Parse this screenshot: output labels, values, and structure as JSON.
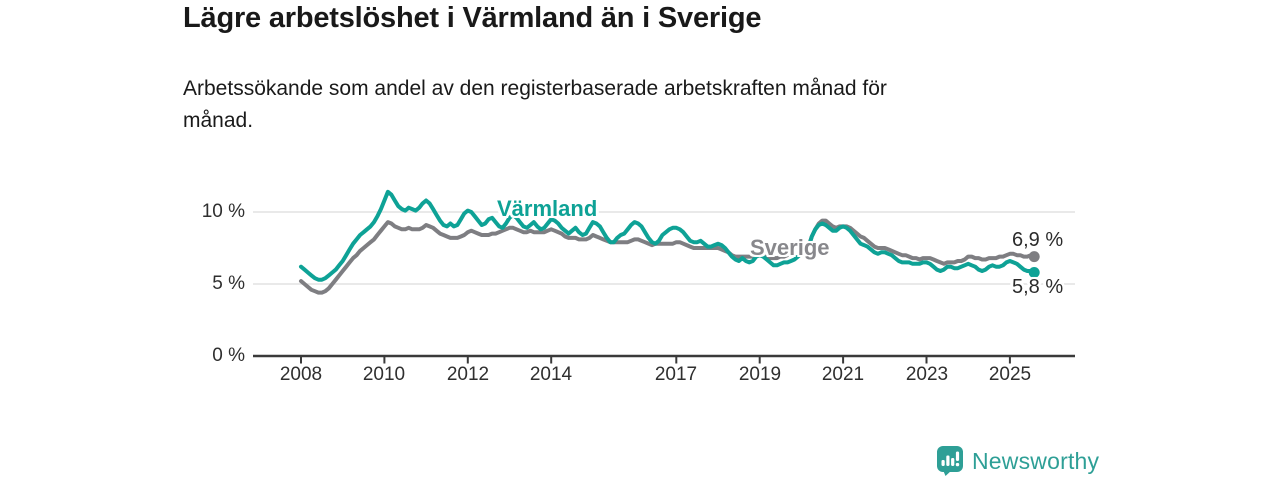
{
  "header": {
    "title": "Lägre arbetslöshet i Värmland än i Sverige",
    "subtitle_lines": [
      "Arbetssökande som andel av den registerbaserade arbetskraften månad för",
      "månad."
    ]
  },
  "colors": {
    "varmland": "#0EA296",
    "sverige": "#7E7E82",
    "sverige_label": "#88888C",
    "grid": "#E2E2E2",
    "axis": "#3A3A3A",
    "tick_text": "#2F2F2F",
    "value_text": "#2B2B2B",
    "logo": "#2E9F96"
  },
  "chart_data": {
    "type": "line",
    "title": "Lägre arbetslöshet i Värmland än i Sverige",
    "xlabel": "",
    "ylabel": "",
    "x_start": "2008-01",
    "x_interval": "monthly",
    "xlim": [
      2008.0,
      2025.67
    ],
    "ylim": [
      0,
      12.5
    ],
    "grid": true,
    "legend_position": "inline-labels",
    "y_ticks": [
      {
        "value": 0,
        "label": "0 %"
      },
      {
        "value": 5,
        "label": "5 %"
      },
      {
        "value": 10,
        "label": "10 %"
      }
    ],
    "x_ticks": [
      {
        "value": 2008,
        "label": "2008"
      },
      {
        "value": 2010,
        "label": "2010"
      },
      {
        "value": 2012,
        "label": "2012"
      },
      {
        "value": 2014,
        "label": "2014"
      },
      {
        "value": 2017,
        "label": "2017"
      },
      {
        "value": 2019,
        "label": "2019"
      },
      {
        "value": 2021,
        "label": "2021"
      },
      {
        "value": 2023,
        "label": "2023"
      },
      {
        "value": 2025,
        "label": "2025"
      }
    ],
    "series": [
      {
        "name": "Värmland",
        "color_key": "varmland",
        "end_label": "5,8 %",
        "end_value": 5.8,
        "values": [
          6.2,
          6.0,
          5.8,
          5.6,
          5.4,
          5.3,
          5.3,
          5.4,
          5.6,
          5.8,
          6.0,
          6.3,
          6.6,
          7.0,
          7.4,
          7.8,
          8.1,
          8.4,
          8.6,
          8.8,
          9.0,
          9.3,
          9.7,
          10.2,
          10.8,
          11.4,
          11.2,
          10.8,
          10.4,
          10.2,
          10.1,
          10.3,
          10.2,
          10.1,
          10.3,
          10.6,
          10.8,
          10.6,
          10.2,
          9.8,
          9.4,
          9.1,
          9.0,
          9.2,
          9.0,
          9.1,
          9.5,
          9.9,
          10.1,
          10.0,
          9.7,
          9.4,
          9.1,
          9.2,
          9.5,
          9.6,
          9.3,
          9.0,
          8.9,
          9.2,
          9.6,
          9.8,
          9.6,
          9.3,
          9.0,
          8.9,
          9.1,
          9.3,
          9.0,
          8.8,
          8.9,
          9.2,
          9.5,
          9.4,
          9.2,
          8.9,
          8.7,
          8.5,
          8.7,
          8.9,
          8.6,
          8.4,
          8.5,
          8.9,
          9.3,
          9.2,
          9.0,
          8.6,
          8.2,
          7.9,
          7.9,
          8.2,
          8.4,
          8.5,
          8.8,
          9.1,
          9.3,
          9.2,
          9.0,
          8.6,
          8.2,
          7.9,
          7.8,
          8.0,
          8.4,
          8.6,
          8.8,
          8.9,
          8.9,
          8.8,
          8.6,
          8.3,
          8.0,
          7.9,
          7.9,
          8.0,
          7.8,
          7.6,
          7.6,
          7.7,
          7.8,
          7.7,
          7.5,
          7.2,
          6.9,
          6.7,
          6.6,
          6.8,
          6.6,
          6.5,
          6.6,
          6.9,
          7.0,
          6.9,
          6.7,
          6.5,
          6.3,
          6.3,
          6.4,
          6.5,
          6.5,
          6.6,
          6.7,
          6.9,
          7.1,
          7.2,
          7.5,
          8.3,
          8.8,
          9.1,
          9.2,
          9.1,
          8.9,
          8.7,
          8.7,
          8.9,
          9.0,
          8.9,
          8.7,
          8.4,
          8.1,
          7.8,
          7.7,
          7.6,
          7.4,
          7.2,
          7.1,
          7.2,
          7.2,
          7.1,
          7.0,
          6.8,
          6.6,
          6.5,
          6.5,
          6.5,
          6.4,
          6.4,
          6.4,
          6.5,
          6.5,
          6.4,
          6.2,
          6.0,
          5.9,
          6.0,
          6.2,
          6.2,
          6.1,
          6.1,
          6.2,
          6.3,
          6.4,
          6.3,
          6.2,
          6.0,
          5.9,
          6.0,
          6.2,
          6.3,
          6.2,
          6.2,
          6.3,
          6.5,
          6.6,
          6.5,
          6.4,
          6.2,
          6.0,
          5.9,
          5.9,
          5.8
        ]
      },
      {
        "name": "Sverige",
        "color_key": "sverige",
        "end_label": "6,9 %",
        "end_value": 6.9,
        "values": [
          5.2,
          5.0,
          4.8,
          4.6,
          4.5,
          4.4,
          4.4,
          4.5,
          4.7,
          5.0,
          5.3,
          5.6,
          5.9,
          6.2,
          6.5,
          6.8,
          7.0,
          7.3,
          7.5,
          7.7,
          7.9,
          8.1,
          8.4,
          8.7,
          9.0,
          9.3,
          9.2,
          9.0,
          8.9,
          8.8,
          8.8,
          8.9,
          8.8,
          8.8,
          8.8,
          8.9,
          9.1,
          9.0,
          8.9,
          8.7,
          8.5,
          8.4,
          8.3,
          8.2,
          8.2,
          8.2,
          8.3,
          8.4,
          8.6,
          8.7,
          8.6,
          8.5,
          8.4,
          8.4,
          8.4,
          8.5,
          8.5,
          8.6,
          8.7,
          8.8,
          8.9,
          8.9,
          8.8,
          8.7,
          8.6,
          8.6,
          8.7,
          8.6,
          8.6,
          8.6,
          8.6,
          8.7,
          8.8,
          8.7,
          8.6,
          8.5,
          8.3,
          8.2,
          8.2,
          8.2,
          8.1,
          8.1,
          8.1,
          8.2,
          8.4,
          8.3,
          8.2,
          8.1,
          8.0,
          7.9,
          7.9,
          7.9,
          7.9,
          7.9,
          7.9,
          8.0,
          8.1,
          8.1,
          8.0,
          7.9,
          7.8,
          7.7,
          7.8,
          7.8,
          7.8,
          7.8,
          7.8,
          7.8,
          7.9,
          7.9,
          7.8,
          7.7,
          7.6,
          7.5,
          7.5,
          7.5,
          7.5,
          7.5,
          7.5,
          7.5,
          7.5,
          7.4,
          7.3,
          7.2,
          7.0,
          6.9,
          6.9,
          6.9,
          6.9,
          6.9,
          6.9,
          7.0,
          7.0,
          7.0,
          6.9,
          6.8,
          6.8,
          6.8,
          6.9,
          6.9,
          7.0,
          7.1,
          7.1,
          7.2,
          7.4,
          7.4,
          7.6,
          8.3,
          8.8,
          9.2,
          9.4,
          9.4,
          9.2,
          9.0,
          8.9,
          9.0,
          9.0,
          9.0,
          8.9,
          8.7,
          8.5,
          8.3,
          8.2,
          8.0,
          7.8,
          7.6,
          7.5,
          7.5,
          7.5,
          7.4,
          7.3,
          7.2,
          7.1,
          7.0,
          7.0,
          6.9,
          6.8,
          6.8,
          6.7,
          6.8,
          6.8,
          6.8,
          6.7,
          6.6,
          6.5,
          6.4,
          6.5,
          6.5,
          6.5,
          6.6,
          6.6,
          6.7,
          6.9,
          6.9,
          6.8,
          6.8,
          6.7,
          6.7,
          6.8,
          6.8,
          6.8,
          6.9,
          6.9,
          7.0,
          7.1,
          7.1,
          7.0,
          7.0,
          6.9,
          6.9,
          7.0,
          6.9
        ]
      }
    ]
  },
  "footer": {
    "brand": "Newsworthy"
  }
}
